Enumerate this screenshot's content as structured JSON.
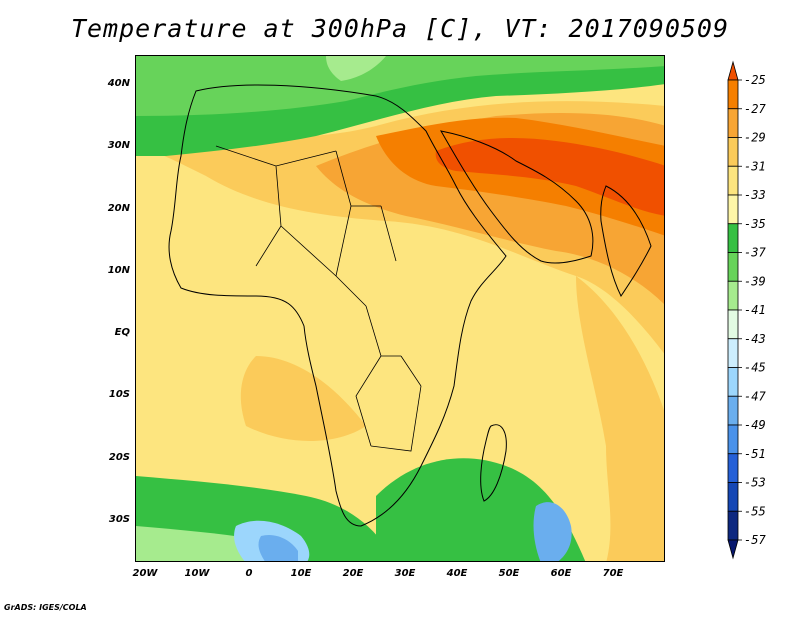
{
  "title": "Temperature at 300hPa [C], VT: 2017090509",
  "credit": "GrADS: IGES/COLA",
  "map": {
    "lat_ticks": [
      "40N",
      "30N",
      "20N",
      "10N",
      "EQ",
      "10S",
      "20S",
      "30S"
    ],
    "lon_ticks": [
      "20W",
      "10W",
      "0",
      "10E",
      "20E",
      "30E",
      "40E",
      "50E",
      "60E",
      "70E"
    ],
    "lon_range": [
      -22,
      80
    ],
    "lat_range": [
      -37,
      45
    ]
  },
  "colorbar": {
    "levels": [
      "-25",
      "-27",
      "-29",
      "-31",
      "-33",
      "-35",
      "-37",
      "-39",
      "-41",
      "-43",
      "-45",
      "-47",
      "-49",
      "-51",
      "-53",
      "-55",
      "-57"
    ],
    "colors": [
      "#f05000",
      "#f57f00",
      "#f7a534",
      "#fbcb5a",
      "#fde57f",
      "#fef6a8",
      "#36c043",
      "#67d35a",
      "#a6eb8e",
      "#e3fbe3",
      "#cdeefe",
      "#9cd6fc",
      "#6aaeee",
      "#4a92ea",
      "#2560d7",
      "#1547b5",
      "#0d2880",
      "#07176e"
    ]
  }
}
